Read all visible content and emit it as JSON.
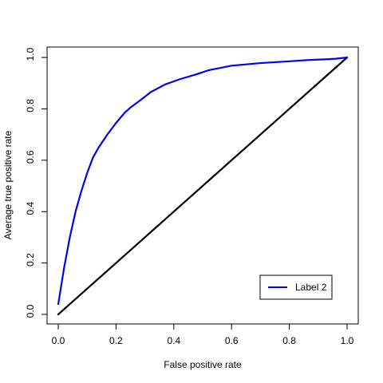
{
  "chart_data": {
    "type": "line",
    "title": "",
    "xlabel": "False positive rate",
    "ylabel": "Average true positive rate",
    "xlim": [
      0,
      1
    ],
    "ylim": [
      0,
      1
    ],
    "x_ticks": [
      "0.0",
      "0.2",
      "0.4",
      "0.6",
      "0.8",
      "1.0"
    ],
    "y_ticks": [
      "0.0",
      "0.2",
      "0.4",
      "0.6",
      "0.8",
      "1.0"
    ],
    "grid": false,
    "legend_position": "bottom-right",
    "series": [
      {
        "name": "Label 2",
        "color": "#0000ff",
        "x": [
          0.0,
          0.02,
          0.04,
          0.06,
          0.08,
          0.1,
          0.12,
          0.14,
          0.17,
          0.2,
          0.23,
          0.25,
          0.28,
          0.32,
          0.37,
          0.42,
          0.48,
          0.52,
          0.6,
          0.7,
          0.8,
          0.85,
          0.93,
          0.96,
          1.0
        ],
        "y": [
          0.04,
          0.18,
          0.3,
          0.4,
          0.48,
          0.55,
          0.61,
          0.65,
          0.7,
          0.745,
          0.785,
          0.805,
          0.83,
          0.865,
          0.895,
          0.915,
          0.935,
          0.95,
          0.968,
          0.978,
          0.985,
          0.989,
          0.993,
          0.995,
          1.0
        ]
      },
      {
        "name": "",
        "color": "#000000",
        "x": [
          0,
          1
        ],
        "y": [
          0,
          1
        ]
      }
    ]
  }
}
